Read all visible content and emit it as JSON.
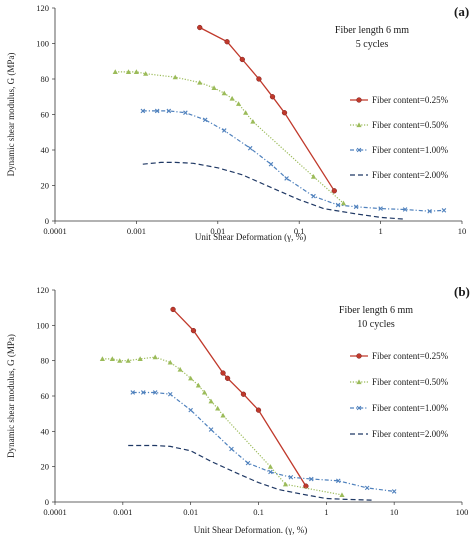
{
  "chart_data": [
    {
      "type": "line",
      "panel_label": "(a)",
      "annotation": [
        "Fiber length 6 mm",
        "5 cycles"
      ],
      "xlabel": "Unit Shear Deformation  (γ, %)",
      "ylabel": "Dynamic shear modulus, G (MPa)",
      "xscale": "log",
      "xlim": [
        0.0001,
        10
      ],
      "ylim": [
        0,
        120
      ],
      "x_ticks": [
        "0.0001",
        "0.001",
        "0.01",
        "0.1",
        "1",
        "10"
      ],
      "y_ticks": [
        "0",
        "20",
        "40",
        "60",
        "80",
        "100",
        "120"
      ],
      "legend_position": "right",
      "series": [
        {
          "name": "Fiber content=0.25%",
          "color": "#c0392b",
          "style": "solid",
          "marker": "circle",
          "x": [
            0.006,
            0.013,
            0.02,
            0.032,
            0.047,
            0.066,
            0.27
          ],
          "y": [
            109,
            101,
            91,
            80,
            70,
            61,
            17
          ]
        },
        {
          "name": "Fiber content=0.50%",
          "color": "#9bbb59",
          "style": "dotted",
          "marker": "triangle",
          "x": [
            0.00055,
            0.0008,
            0.001,
            0.0013,
            0.003,
            0.006,
            0.009,
            0.012,
            0.015,
            0.018,
            0.022,
            0.027,
            0.15,
            0.35
          ],
          "y": [
            84,
            84,
            84,
            83,
            81,
            78,
            75,
            72,
            69,
            66,
            61,
            56,
            25,
            10
          ]
        },
        {
          "name": "Fiber content=1.00%",
          "color": "#4f81bd",
          "style": "dashdot",
          "marker": "x",
          "x": [
            0.0012,
            0.0018,
            0.0025,
            0.004,
            0.007,
            0.012,
            0.025,
            0.045,
            0.07,
            0.15,
            0.3,
            0.5,
            1.0,
            2.0,
            4.0,
            6.0
          ],
          "y": [
            62,
            62,
            62,
            61,
            57,
            51,
            41,
            32,
            24,
            14,
            9,
            8,
            7,
            6.5,
            5.5,
            6
          ]
        },
        {
          "name": "Fiber content=2.00%",
          "color": "#1f3864",
          "style": "dashed",
          "marker": "none",
          "x": [
            0.0012,
            0.002,
            0.003,
            0.005,
            0.01,
            0.02,
            0.05,
            0.1,
            0.2,
            0.5,
            1.0,
            2.0
          ],
          "y": [
            32,
            33,
            33,
            32.5,
            30,
            26,
            18,
            12,
            7,
            4,
            2,
            1
          ]
        }
      ]
    },
    {
      "type": "line",
      "panel_label": "(b)",
      "annotation": [
        "Fiber length 6 mm",
        "10 cycles"
      ],
      "xlabel": "Unit Shear Deformation.  (γ, %)",
      "ylabel": "Dynamic shear modulus, G (MPa)",
      "xscale": "log",
      "xlim": [
        0.0001,
        100
      ],
      "ylim": [
        0,
        120
      ],
      "x_ticks": [
        "0.0001",
        "0.001",
        "0.01",
        "0.1",
        "1",
        "10",
        "100"
      ],
      "y_ticks": [
        "0",
        "20",
        "40",
        "60",
        "80",
        "100",
        "120"
      ],
      "legend_position": "right",
      "series": [
        {
          "name": "Fiber content=0.25%",
          "color": "#c0392b",
          "style": "solid",
          "marker": "circle",
          "x": [
            0.0055,
            0.011,
            0.03,
            0.035,
            0.06,
            0.1,
            0.5
          ],
          "y": [
            109,
            97,
            73,
            70,
            61,
            52,
            9
          ]
        },
        {
          "name": "Fiber content=0.50%",
          "color": "#9bbb59",
          "style": "dotted",
          "marker": "triangle",
          "x": [
            0.0005,
            0.0007,
            0.0009,
            0.0012,
            0.0018,
            0.003,
            0.005,
            0.007,
            0.01,
            0.013,
            0.016,
            0.02,
            0.025,
            0.03,
            0.15,
            0.25,
            1.7
          ],
          "y": [
            81,
            81,
            80,
            80,
            81,
            82,
            79,
            75,
            70,
            66,
            62,
            57,
            53,
            49,
            20,
            10,
            4
          ]
        },
        {
          "name": "Fiber content=1.00%",
          "color": "#4f81bd",
          "style": "dashdot",
          "marker": "x",
          "x": [
            0.0014,
            0.002,
            0.003,
            0.005,
            0.01,
            0.02,
            0.04,
            0.07,
            0.15,
            0.3,
            0.6,
            1.5,
            4.0,
            10.0
          ],
          "y": [
            62,
            62,
            62,
            61,
            52,
            41,
            30,
            22,
            17,
            14,
            13,
            12,
            8,
            6
          ]
        },
        {
          "name": "Fiber content=2.00%",
          "color": "#1f3864",
          "style": "dashed",
          "marker": "none",
          "x": [
            0.0012,
            0.002,
            0.003,
            0.005,
            0.01,
            0.02,
            0.05,
            0.1,
            0.2,
            0.5,
            1.0,
            2.0,
            5.0
          ],
          "y": [
            32,
            32,
            32,
            31.5,
            29,
            23,
            16,
            11,
            7,
            4,
            2,
            1.5,
            1
          ]
        }
      ]
    }
  ]
}
